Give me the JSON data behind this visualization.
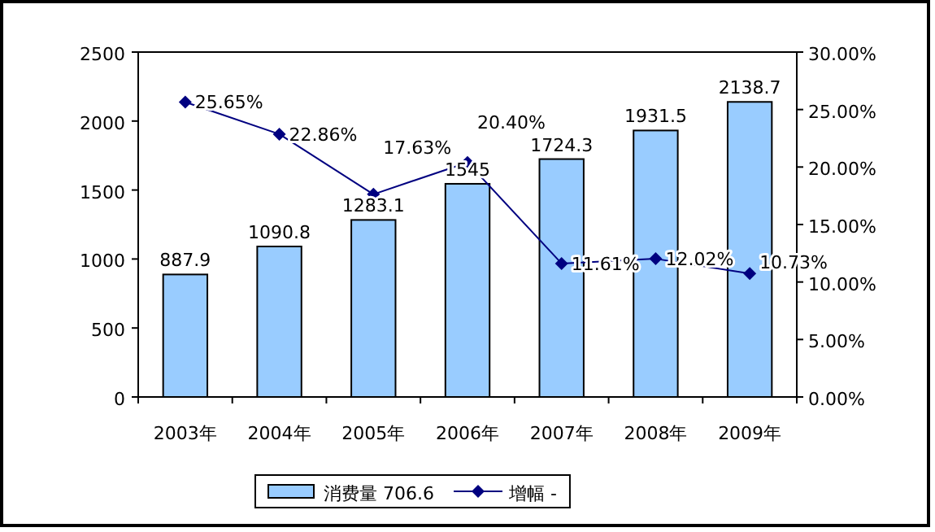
{
  "chart_data": {
    "type": "bar",
    "categories": [
      "2003年",
      "2004年",
      "2005年",
      "2006年",
      "2007年",
      "2008年",
      "2009年"
    ],
    "series": [
      {
        "name": "消费量 706.6",
        "type": "bar",
        "color": "#99ccff",
        "values": [
          887.9,
          1090.8,
          1283.1,
          1545,
          1724.3,
          1931.5,
          2138.7
        ],
        "value_labels": [
          "887.9",
          "1090.8",
          "1283.1",
          "1545",
          "1724.3",
          "1931.5",
          "2138.7"
        ]
      },
      {
        "name": "增幅 -",
        "type": "line",
        "axis": "y2",
        "color": "#000080",
        "marker": "diamond",
        "values": [
          25.65,
          22.86,
          17.63,
          20.4,
          11.61,
          12.02,
          10.73
        ],
        "value_labels": [
          "25.65%",
          "22.86%",
          "17.63%",
          "20.40%",
          "11.61%",
          "12.02%",
          "10.73%"
        ]
      }
    ],
    "ylim": [
      0,
      2500
    ],
    "yticks": [
      0,
      500,
      1000,
      1500,
      2000,
      2500
    ],
    "y2lim": [
      0,
      30
    ],
    "y2ticks": [
      {
        "value": 0,
        "label": "0.00%"
      },
      {
        "value": 5,
        "label": "5.00%"
      },
      {
        "value": 10,
        "label": "10.00%"
      },
      {
        "value": 15,
        "label": "15.00%"
      },
      {
        "value": 20,
        "label": "20.00%"
      },
      {
        "value": 25,
        "label": "25.00%"
      },
      {
        "value": 30,
        "label": "30.00%"
      }
    ],
    "legend": "bottom",
    "grid": false
  }
}
